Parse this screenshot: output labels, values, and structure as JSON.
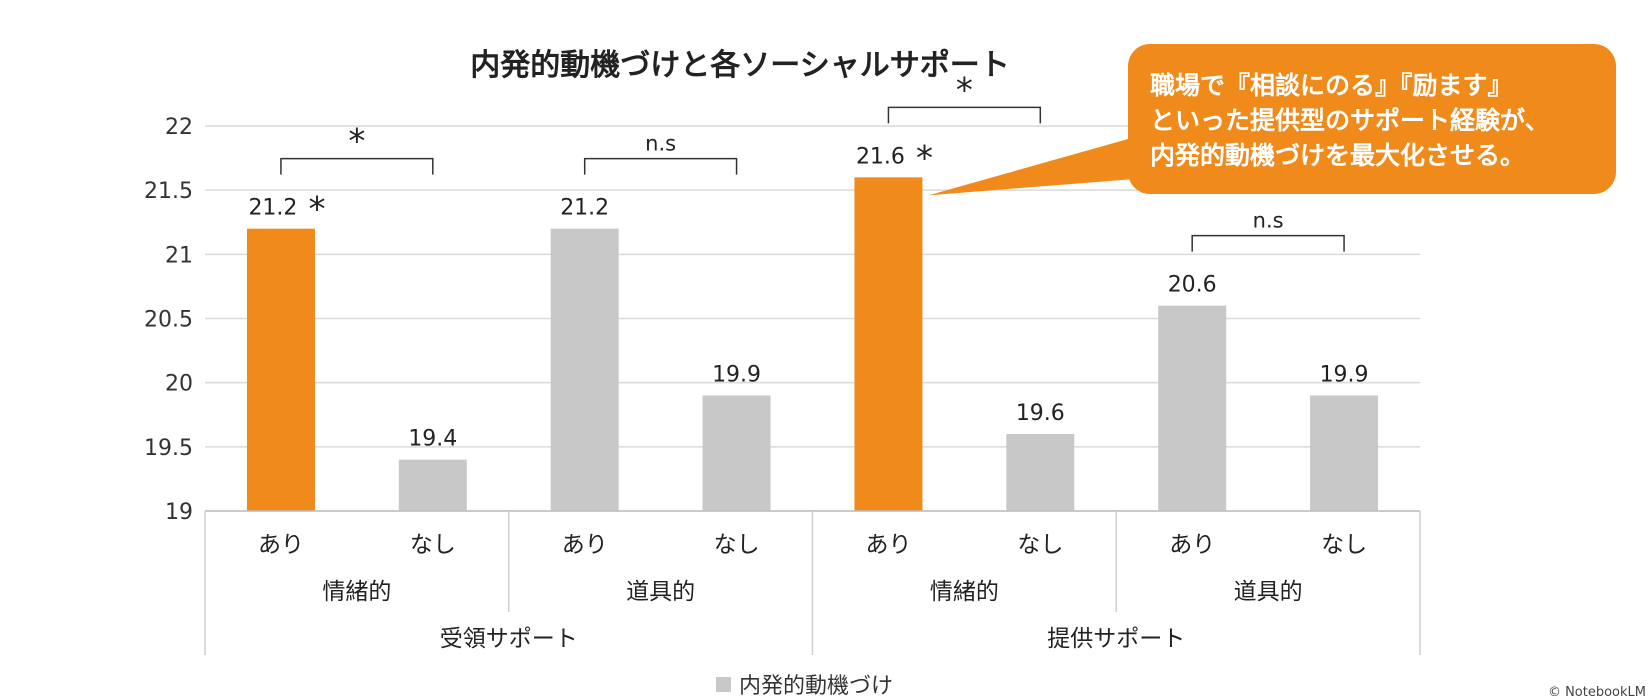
{
  "chart_data": {
    "type": "bar",
    "title": "内発的動機づけと各ソーシャルサポート",
    "ylim": [
      19,
      22
    ],
    "yticks": [
      "19",
      "19.5",
      "20",
      "20.5",
      "21",
      "21.5",
      "22"
    ],
    "grid": true,
    "legend": "bottom",
    "series": [
      {
        "name": "内発的動機づけ",
        "color": "#c8c8c8",
        "highlight_color": "#f08a1b",
        "values": [
          21.2,
          19.4,
          21.2,
          19.9,
          21.6,
          19.6,
          20.6,
          19.9
        ],
        "labels": [
          "21.2",
          "19.4",
          "21.2",
          "19.9",
          "21.6",
          "19.6",
          "20.6",
          "19.9"
        ],
        "highlighted": [
          true,
          false,
          false,
          false,
          true,
          false,
          false,
          false
        ]
      }
    ],
    "categories": [
      "あり",
      "なし",
      "あり",
      "なし",
      "あり",
      "なし",
      "あり",
      "なし"
    ],
    "group_labels": [
      "情緒的",
      "道具的",
      "情緒的",
      "道具的"
    ],
    "supergroup_labels": [
      "受領サポート",
      "提供サポート"
    ],
    "significance": [
      {
        "label": "*",
        "group": 0
      },
      {
        "label": "n.s",
        "group": 1
      },
      {
        "label": "*",
        "group": 2
      },
      {
        "label": "n.s",
        "group": 3
      }
    ],
    "bar_stars": [
      {
        "bar": 0,
        "label": "*"
      },
      {
        "bar": 4,
        "label": "*"
      }
    ]
  },
  "callout": {
    "lines": [
      "職場で『相談にのる』『励ます』",
      "といった提供型のサポート経験が、",
      "内発的動機づけを最大化させる。"
    ],
    "color": "#f08a1b"
  },
  "legend_label": "内発的動機づけ",
  "corner_text": "© NotebookLM"
}
